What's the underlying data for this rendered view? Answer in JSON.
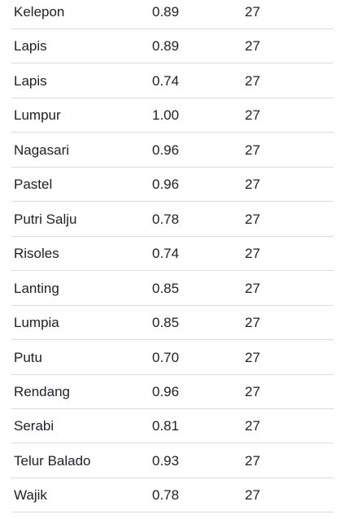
{
  "table": {
    "rows": [
      {
        "name": "Kelepon",
        "score": "0.89",
        "count": "27"
      },
      {
        "name": "Lapis",
        "score": "0.89",
        "count": "27"
      },
      {
        "name": "Lapis",
        "score": "0.74",
        "count": "27"
      },
      {
        "name": "Lumpur",
        "score": "1.00",
        "count": "27"
      },
      {
        "name": "Nagasari",
        "score": "0.96",
        "count": "27"
      },
      {
        "name": "Pastel",
        "score": "0.96",
        "count": "27"
      },
      {
        "name": "Putri Salju",
        "score": "0.78",
        "count": "27"
      },
      {
        "name": "Risoles",
        "score": "0.74",
        "count": "27"
      },
      {
        "name": "Lanting",
        "score": "0.85",
        "count": "27"
      },
      {
        "name": "Lumpia",
        "score": "0.85",
        "count": "27"
      },
      {
        "name": "Putu",
        "score": "0.70",
        "count": "27"
      },
      {
        "name": "Rendang",
        "score": "0.96",
        "count": "27"
      },
      {
        "name": "Serabi",
        "score": "0.81",
        "count": "27"
      },
      {
        "name": "Telur Balado",
        "score": "0.93",
        "count": "27"
      },
      {
        "name": "Wajik",
        "score": "0.78",
        "count": "27"
      }
    ]
  }
}
